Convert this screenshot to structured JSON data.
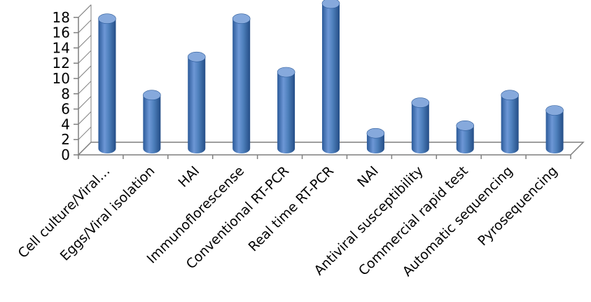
{
  "chart_data": {
    "type": "bar",
    "style": "3d-cylinder",
    "categories": [
      "Cell culture/Viral…",
      "Eggs/Viral isolation",
      "HAI",
      "Immunoflorescense",
      "Conventional RT-PCR",
      "Real time RT-PCR",
      "NAI",
      "Antiviral susceptibility",
      "Commercial rapid test",
      "Automatic sequencing",
      "Pyrosequencing"
    ],
    "values": [
      17,
      7,
      12,
      17,
      10,
      19,
      2,
      6,
      3,
      7,
      5
    ],
    "ylim": [
      0,
      18
    ],
    "yticks": [
      0,
      2,
      4,
      6,
      8,
      10,
      12,
      14,
      16,
      18
    ],
    "grid": false,
    "legend": "none",
    "bar_color": "#4f81bd",
    "bar_dark_color": "#2b5a99",
    "bar_top_color": "#86a9dc",
    "axis_color": "#7f7f7f"
  }
}
